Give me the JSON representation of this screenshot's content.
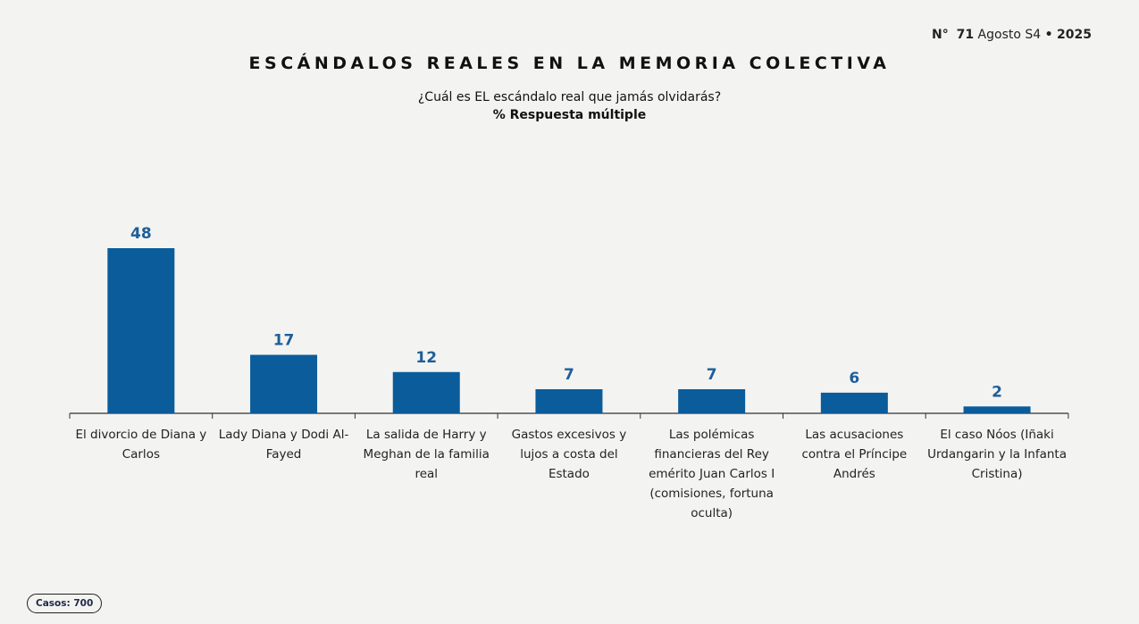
{
  "header": {
    "issue_prefix": "N°",
    "issue_number": "71",
    "issue_period": "Agosto S4",
    "bullet": "•",
    "year": "2025"
  },
  "footer": {
    "cases": "Casos: 700"
  },
  "chart_data": {
    "type": "bar",
    "title": "ESCÁNDALOS REALES EN LA MEMORIA COLECTIVA",
    "subtitle": "¿Cuál es EL escándalo real que jamás olvidarás?",
    "subtitle2": "% Respuesta múltiple",
    "categories": [
      "El divorcio de Diana y Carlos",
      "Lady Diana y Dodi Al-Fayed",
      "La salida de Harry y Meghan de la familia real",
      "Gastos excesivos y lujos a costa del Estado",
      "Las polémicas financieras del Rey emérito Juan Carlos I (comisiones, fortuna oculta)",
      "Las acusaciones contra el Príncipe Andrés",
      "El caso Nóos (Iñaki Urdangarin y la Infanta Cristina)"
    ],
    "values": [
      48,
      17,
      12,
      7,
      7,
      6,
      2
    ],
    "ylim": [
      0,
      48
    ],
    "grid": false,
    "colors": {
      "bar": "#0b5c9a",
      "label": "#1d5e98"
    }
  }
}
